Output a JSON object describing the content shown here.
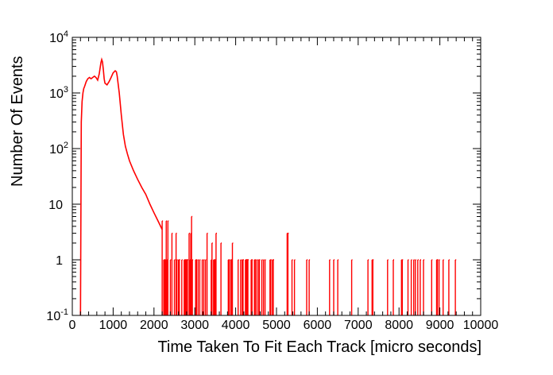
{
  "chart_data": {
    "type": "line",
    "title": "",
    "xlabel": "Time Taken To Fit Each Track [micro seconds]",
    "ylabel": "Number Of Events",
    "xlim": [
      0,
      10000
    ],
    "ylim": [
      0.1,
      10000
    ],
    "yscale": "log",
    "grid": false,
    "legend": "none",
    "line_color": "#ff0000",
    "x_ticks": [
      "0",
      "1000",
      "2000",
      "3000",
      "4000",
      "5000",
      "6000",
      "7000",
      "8000",
      "9000",
      "10000"
    ],
    "y_ticks": [
      {
        "value": 0.1,
        "base": "10",
        "exp": "-1"
      },
      {
        "value": 1,
        "base": "1",
        "exp": ""
      },
      {
        "value": 10,
        "base": "10",
        "exp": ""
      },
      {
        "value": 100,
        "base": "10",
        "exp": "2"
      },
      {
        "value": 1000,
        "base": "10",
        "exp": "3"
      },
      {
        "value": 10000,
        "base": "10",
        "exp": "4"
      }
    ],
    "series": [
      {
        "values_description": "smooth envelope of histogram counts",
        "x": [
          200,
          220,
          240,
          260,
          280,
          300,
          340,
          380,
          420,
          460,
          500,
          540,
          580,
          620,
          660,
          700,
          720,
          740,
          760,
          780,
          800,
          850,
          900,
          950,
          1000,
          1050,
          1080,
          1100,
          1150,
          1200,
          1250,
          1300,
          1350,
          1400,
          1500,
          1600,
          1700,
          1800,
          1900,
          2000,
          2100,
          2200
        ],
        "y": [
          0.1,
          300,
          700,
          1000,
          1200,
          1300,
          1600,
          1800,
          1900,
          1800,
          1900,
          2000,
          1900,
          1700,
          2200,
          3500,
          4000,
          3600,
          2600,
          1800,
          1500,
          1400,
          1600,
          1900,
          2300,
          2500,
          2400,
          2000,
          1000,
          400,
          180,
          110,
          80,
          60,
          40,
          28,
          20,
          15,
          10,
          7,
          5,
          3.5
        ]
      }
    ],
    "tail": {
      "x_start": 2200,
      "x_end": 9700,
      "bin_width": 20,
      "description": "sparse noisy tail, counts mostly 0-1 beyond 5000"
    }
  }
}
